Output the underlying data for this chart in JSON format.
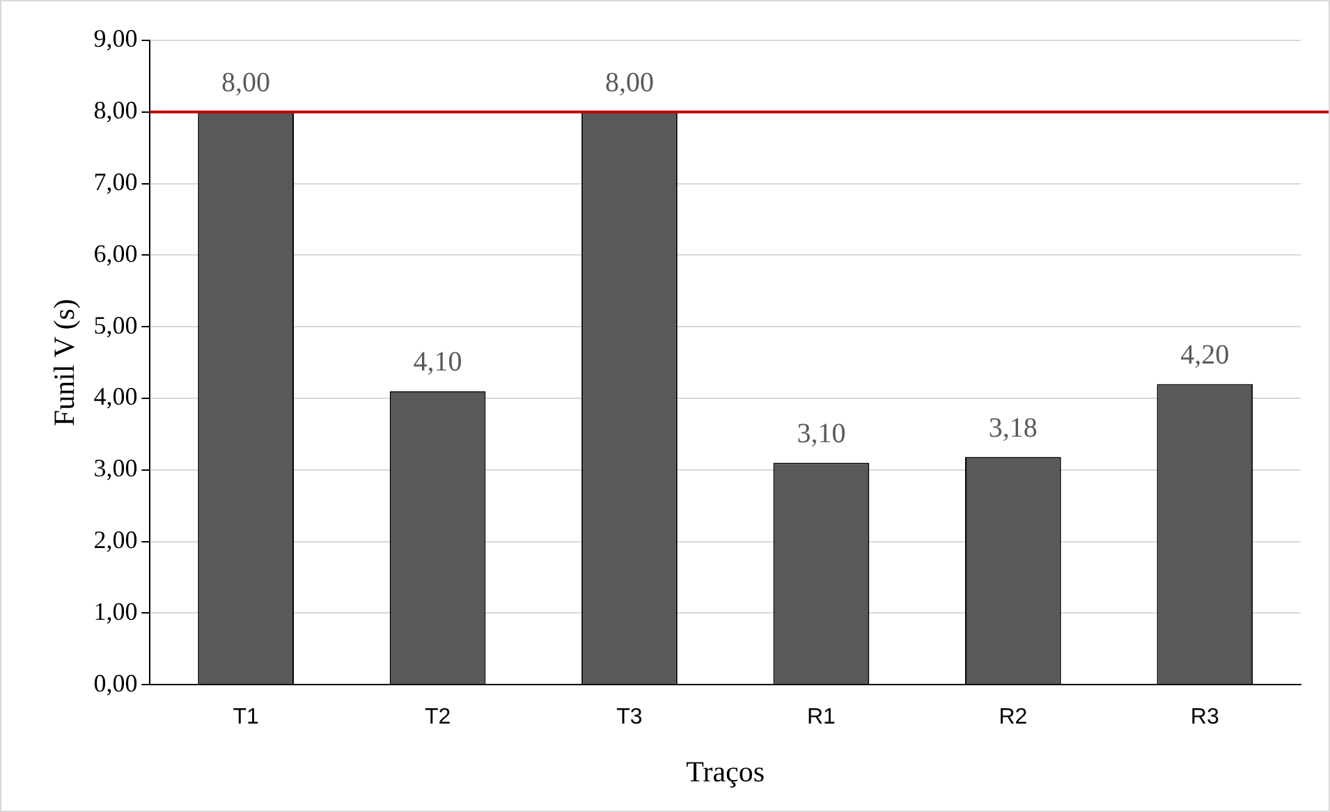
{
  "chart_data": {
    "type": "bar",
    "xlabel": "Traços",
    "ylabel": "Funil V (s)",
    "categories": [
      "T1",
      "T2",
      "T3",
      "R1",
      "R2",
      "R3"
    ],
    "values": [
      8.0,
      4.1,
      8.0,
      3.1,
      3.18,
      4.2
    ],
    "value_labels": [
      "8,00",
      "4,10",
      "8,00",
      "3,10",
      "3,18",
      "4,20"
    ],
    "color": "#595959",
    "ylim": [
      0,
      9
    ],
    "yticks": [
      {
        "value": 0,
        "label": "0,00"
      },
      {
        "value": 1,
        "label": "1,00"
      },
      {
        "value": 2,
        "label": "2,00"
      },
      {
        "value": 3,
        "label": "3,00"
      },
      {
        "value": 4,
        "label": "4,00"
      },
      {
        "value": 5,
        "label": "5,00"
      },
      {
        "value": 6,
        "label": "6,00"
      },
      {
        "value": 7,
        "label": "7,00"
      },
      {
        "value": 8,
        "label": "8,00"
      },
      {
        "value": 9,
        "label": "9,00"
      }
    ],
    "grid": "y",
    "legend": false,
    "ref_lines": [
      {
        "axis": "y",
        "value": 8,
        "color": "#c00000"
      }
    ]
  }
}
